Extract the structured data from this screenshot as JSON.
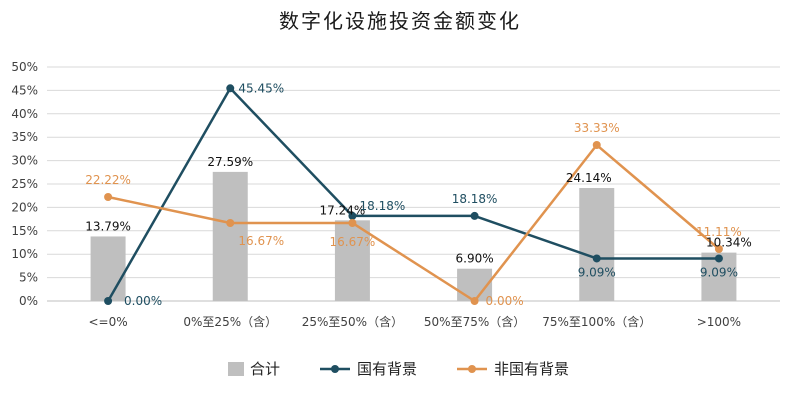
{
  "chart_data": {
    "type": "bar+line",
    "title": "数字化设施投资金额变化",
    "categories": [
      "<=0%",
      "0%至25%（含）",
      "25%至50%（含）",
      "50%至75%（含）",
      "75%至100%（含）",
      ">100%"
    ],
    "y_ticks": [
      "0%",
      "5%",
      "10%",
      "15%",
      "20%",
      "25%",
      "30%",
      "35%",
      "40%",
      "45%",
      "50%"
    ],
    "ylim": [
      0,
      50
    ],
    "grid": true,
    "legend_position": "bottom",
    "colors": {
      "bar": "#bfbfbf",
      "state": "#1f4e61",
      "nonstate": "#e0934f",
      "grid": "#d9d9d9"
    },
    "series": [
      {
        "name": "合计",
        "type": "bar",
        "values": [
          13.79,
          27.59,
          17.24,
          6.9,
          24.14,
          10.34
        ],
        "labels": [
          "13.79%",
          "27.59%",
          "17.24%",
          "6.90%",
          "24.14%",
          "10.34%"
        ]
      },
      {
        "name": "国有背景",
        "type": "line",
        "values": [
          0.0,
          45.45,
          18.18,
          18.18,
          9.09,
          9.09
        ],
        "labels": [
          "0.00%",
          "45.45%",
          "18.18%",
          "18.18%",
          "9.09%",
          "9.09%"
        ]
      },
      {
        "name": "非国有背景",
        "type": "line",
        "values": [
          22.22,
          16.67,
          16.67,
          0.0,
          33.33,
          11.11
        ],
        "labels": [
          "22.22%",
          "16.67%",
          "16.67%",
          "0.00%",
          "33.33%",
          "11.11%"
        ]
      }
    ]
  }
}
